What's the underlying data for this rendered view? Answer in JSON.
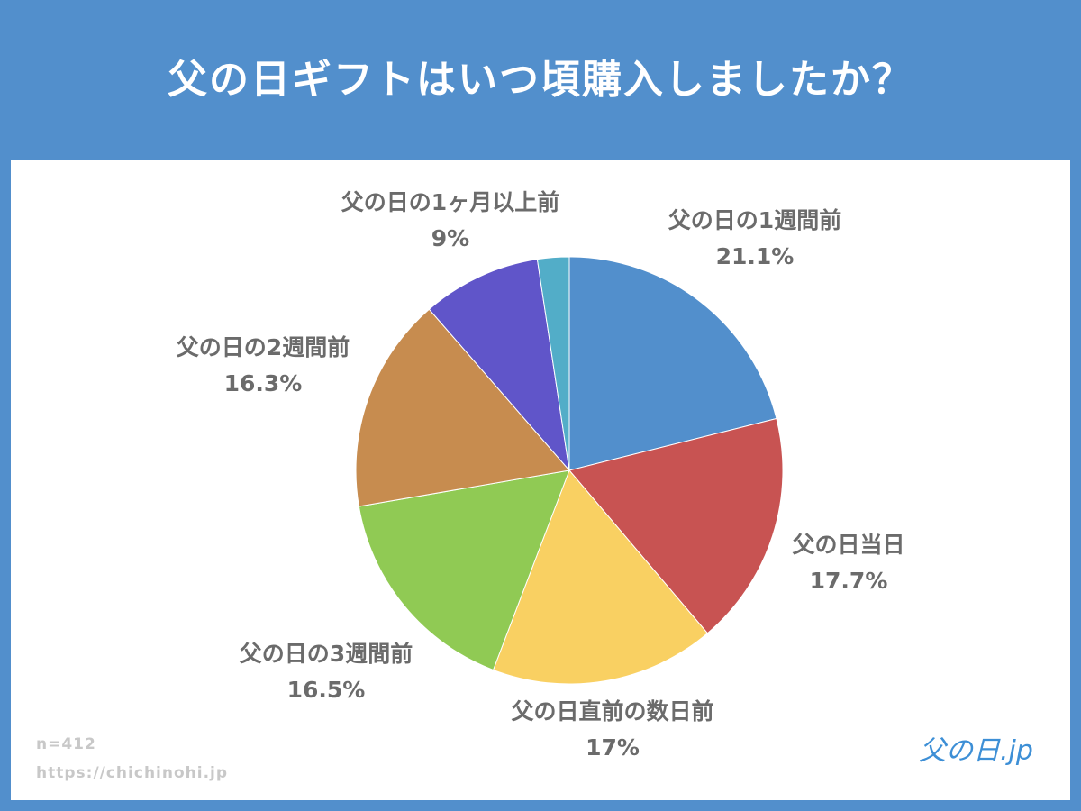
{
  "title": "父の日ギフトはいつ頃購入しましたか？",
  "chart_data": {
    "type": "pie",
    "title": "父の日ギフトはいつ頃購入しましたか？",
    "start": "top",
    "direction": "clockwise",
    "slices": [
      {
        "label": "父の日の1週間前",
        "value": 21.1,
        "display": "21.1%",
        "color": "#528fcc"
      },
      {
        "label": "父の日当日",
        "value": 17.7,
        "display": "17.7%",
        "color": "#c85352"
      },
      {
        "label": "父の日直前の数日前",
        "value": 17,
        "display": "17%",
        "color": "#f9d062"
      },
      {
        "label": "父の日の3週間前",
        "value": 16.5,
        "display": "16.5%",
        "color": "#90ca54"
      },
      {
        "label": "父の日の2週間前",
        "value": 16.3,
        "display": "16.3%",
        "color": "#c78c4f"
      },
      {
        "label": "父の日の1ヶ月以上前",
        "value": 9,
        "display": "9%",
        "color": "#6055c9"
      },
      {
        "label": "",
        "value": 2.4,
        "display": "",
        "color": "#52adc8"
      }
    ]
  },
  "footer": {
    "n": "n=412",
    "url": "https://chichinohi.jp"
  },
  "logo": "父の日.jp"
}
